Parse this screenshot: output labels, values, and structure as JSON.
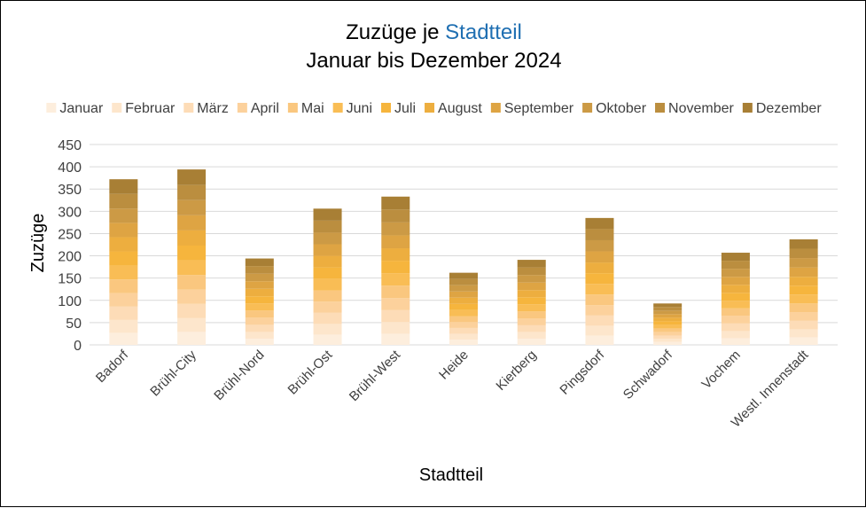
{
  "chart_data": {
    "type": "bar",
    "stacked": true,
    "title_prefix": "Zuzüge je ",
    "title_highlight": "Stadtteil",
    "subtitle": "Januar bis Dezember 2024",
    "xlabel": "Stadtteil",
    "ylabel": "Zuzüge",
    "ylim": [
      0,
      450
    ],
    "yticks": [
      0,
      50,
      100,
      150,
      200,
      250,
      300,
      350,
      400,
      450
    ],
    "grid": true,
    "legend_position": "top",
    "categories": [
      "Badorf",
      "Brühl-City",
      "Brühl-Nord",
      "Brühl-Ost",
      "Brühl-West",
      "Heide",
      "Kierberg",
      "Pingsdorf",
      "Schwadorf",
      "Vochem",
      "Westl. Innenstadt"
    ],
    "series": [
      {
        "name": "Januar",
        "color": "#fdeedd",
        "values": [
          27,
          29,
          14,
          23,
          25,
          12,
          14,
          21,
          7,
          15,
          17
        ]
      },
      {
        "name": "Februar",
        "color": "#fde6cc",
        "values": [
          29,
          31,
          15,
          24,
          26,
          13,
          15,
          22,
          7,
          16,
          18
        ]
      },
      {
        "name": "März",
        "color": "#fddcb7",
        "values": [
          30,
          32,
          16,
          25,
          27,
          13,
          15,
          23,
          7,
          17,
          19
        ]
      },
      {
        "name": "April",
        "color": "#fcd19c",
        "values": [
          30,
          32,
          16,
          25,
          27,
          13,
          15,
          23,
          8,
          17,
          19
        ]
      },
      {
        "name": "Mai",
        "color": "#fac77f",
        "values": [
          31,
          33,
          16,
          25,
          28,
          13,
          16,
          24,
          8,
          17,
          20
        ]
      },
      {
        "name": "Juni",
        "color": "#f9bd55",
        "values": [
          31,
          33,
          16,
          26,
          28,
          14,
          16,
          24,
          8,
          17,
          20
        ]
      },
      {
        "name": "Juli",
        "color": "#f6b53d",
        "values": [
          32,
          33,
          16,
          26,
          28,
          14,
          16,
          24,
          8,
          18,
          20
        ]
      },
      {
        "name": "August",
        "color": "#edae3f",
        "values": [
          32,
          34,
          17,
          26,
          28,
          14,
          16,
          24,
          8,
          18,
          20
        ]
      },
      {
        "name": "September",
        "color": "#dea443",
        "values": [
          32,
          34,
          17,
          26,
          29,
          14,
          17,
          25,
          8,
          18,
          21
        ]
      },
      {
        "name": "Oktober",
        "color": "#cc9a45",
        "values": [
          32,
          34,
          17,
          26,
          29,
          14,
          17,
          25,
          8,
          18,
          21
        ]
      },
      {
        "name": "November",
        "color": "#bb8e3f",
        "values": [
          33,
          34,
          17,
          27,
          29,
          14,
          17,
          25,
          8,
          18,
          21
        ]
      },
      {
        "name": "Dezember",
        "color": "#a87f35",
        "values": [
          33,
          35,
          17,
          27,
          29,
          14,
          17,
          25,
          8,
          18,
          21
        ]
      }
    ]
  }
}
